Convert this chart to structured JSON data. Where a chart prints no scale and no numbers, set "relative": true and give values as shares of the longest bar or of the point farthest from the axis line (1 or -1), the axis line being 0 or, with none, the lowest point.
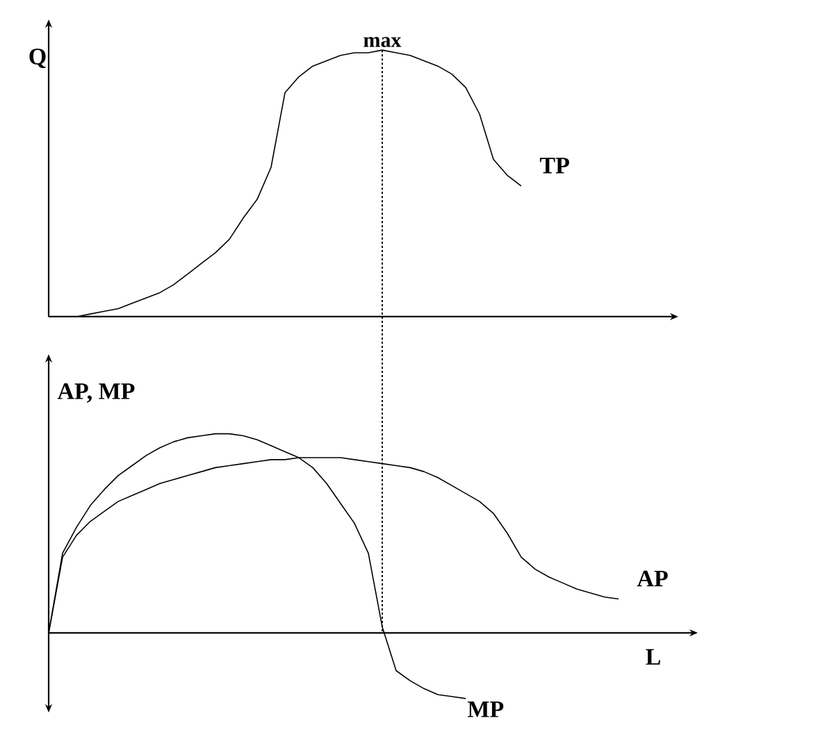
{
  "chart_data": [
    {
      "type": "line",
      "relative": true,
      "ylabel": "Q",
      "categories": [
        null,
        null,
        null,
        null,
        null,
        null,
        null,
        null,
        null,
        null,
        null,
        null,
        null,
        null,
        null,
        null,
        null,
        null,
        null,
        null,
        null,
        null,
        null,
        null,
        null,
        null,
        null,
        null,
        null,
        null,
        null,
        null,
        null,
        null,
        null,
        null,
        null,
        null,
        null,
        null,
        null,
        null,
        null,
        null,
        null,
        null
      ],
      "series": [
        {
          "name": "TP",
          "color": "#000000",
          "values": [
            0,
            0,
            0,
            0.01,
            0.02,
            0.03,
            0.05,
            0.07,
            0.09,
            0.12,
            0.16,
            0.2,
            0.24,
            0.29,
            0.37,
            0.44,
            0.56,
            0.84,
            0.9,
            0.94,
            0.96,
            0.98,
            0.99,
            0.99,
            1,
            0.99,
            0.98,
            0.96,
            0.94,
            0.91,
            0.86,
            0.76,
            0.59,
            0.53,
            0.49,
            null,
            null,
            null,
            null,
            null,
            null,
            null,
            null,
            null,
            null,
            null
          ]
        }
      ],
      "annotations": [
        {
          "text": "max",
          "y": 1
        }
      ]
    },
    {
      "type": "line",
      "relative": true,
      "ylabel": "AP, MP",
      "xlabel": "L",
      "categories": [
        null,
        null,
        null,
        null,
        null,
        null,
        null,
        null,
        null,
        null,
        null,
        null,
        null,
        null,
        null,
        null,
        null,
        null,
        null,
        null,
        null,
        null,
        null,
        null,
        null,
        null,
        null,
        null,
        null,
        null,
        null,
        null,
        null,
        null,
        null,
        null,
        null,
        null,
        null,
        null,
        null,
        null,
        null,
        null,
        null,
        null
      ],
      "series": [
        {
          "name": "AP",
          "color": "#000000",
          "values": [
            0,
            0.38,
            0.49,
            0.56,
            0.61,
            0.66,
            0.69,
            0.72,
            0.75,
            0.77,
            0.79,
            0.81,
            0.83,
            0.84,
            0.85,
            0.86,
            0.87,
            0.87,
            0.88,
            0.88,
            0.88,
            0.88,
            0.87,
            0.86,
            0.85,
            0.84,
            0.83,
            0.81,
            0.78,
            0.74,
            0.7,
            0.66,
            0.6,
            0.5,
            0.38,
            0.32,
            0.28,
            0.25,
            0.22,
            0.2,
            0.18,
            0.17,
            null,
            null,
            null,
            null
          ]
        },
        {
          "name": "MP",
          "color": "#000000",
          "values": [
            0,
            0.4,
            0.53,
            0.64,
            0.72,
            0.79,
            0.84,
            0.89,
            0.93,
            0.96,
            0.98,
            0.99,
            1,
            1,
            0.99,
            0.97,
            0.94,
            0.91,
            0.88,
            0.83,
            0.75,
            0.65,
            0.55,
            0.4,
            0.03,
            -0.19,
            -0.24,
            -0.28,
            -0.31,
            -0.32,
            -0.33,
            null,
            null,
            null,
            null,
            null,
            null,
            null,
            null,
            null,
            null,
            null,
            null,
            null,
            null,
            null
          ]
        }
      ]
    }
  ]
}
